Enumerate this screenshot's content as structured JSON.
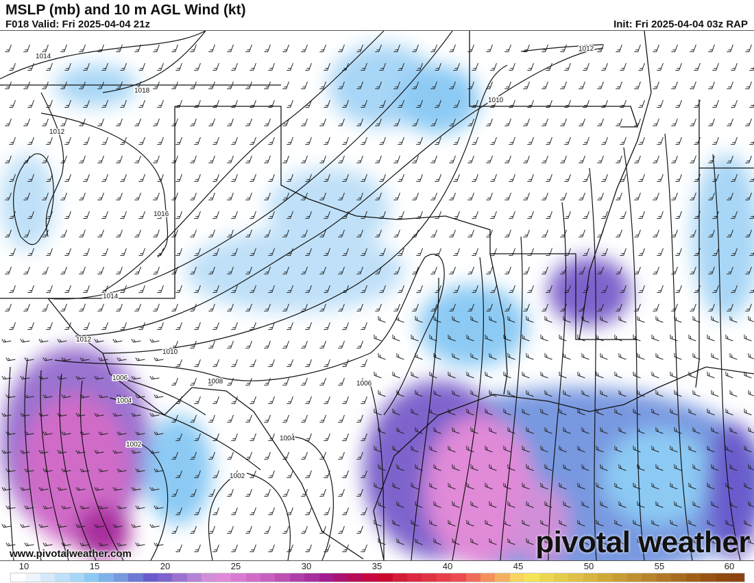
{
  "header": {
    "title": "MSLP (mb) and 10 m AGL Wind (kt)",
    "valid": "F018 Valid: Fri 2025-04-04 21z",
    "init": "Init: Fri 2025-04-04 03z RAP"
  },
  "map": {
    "isobar_labels": [
      "1014",
      "1018",
      "1012",
      "1016",
      "1014",
      "1012",
      "1010",
      "1008",
      "1006",
      "1004",
      "1002",
      "1002",
      "1004",
      "1006",
      "1010",
      "1012"
    ],
    "watermark_url": "www.pivotalweather.com",
    "logo": "pivotal weather"
  },
  "colorbar": {
    "labels": [
      "10",
      "15",
      "20",
      "25",
      "30",
      "35",
      "40",
      "45",
      "50",
      "55",
      "60"
    ],
    "colors": [
      "#ffffff",
      "#eef5fd",
      "#d6e9fa",
      "#bfe0f8",
      "#a8d6f6",
      "#8ccaf4",
      "#7fb0ea",
      "#7898e0",
      "#6d79d6",
      "#6a5ccc",
      "#7e63cc",
      "#9a72d0",
      "#b583d6",
      "#d08fd8",
      "#e08ad8",
      "#d97bd0",
      "#d06cc8",
      "#c860c0",
      "#be50b4",
      "#b03ea8",
      "#a82e9e",
      "#a01c90",
      "#ac1270",
      "#b80c58",
      "#c80640",
      "#cc0830",
      "#d41c38",
      "#dc2840",
      "#e03444",
      "#e8404a",
      "#ec4c50",
      "#f06c5a",
      "#f4905a",
      "#f4b060",
      "#f8d460",
      "#f6e458",
      "#ecd850",
      "#e6cc4c",
      "#e0c048",
      "#d8b440",
      "#d0a838",
      "#c89c34",
      "#c09030",
      "#b8842c",
      "#b07828",
      "#a86c20",
      "#a06018",
      "#985414",
      "#904a10",
      "#8c4410"
    ]
  }
}
